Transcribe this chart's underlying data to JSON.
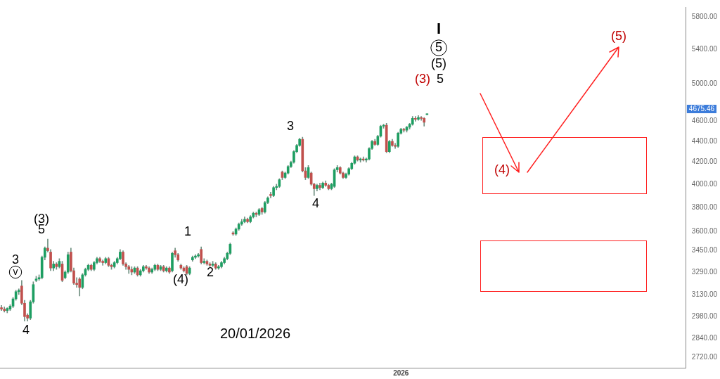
{
  "chart_data": {
    "type": "candlestick",
    "categories": [
      null,
      null,
      null,
      null,
      null,
      null,
      null,
      null,
      null,
      null,
      null,
      null,
      null,
      null,
      null,
      null,
      null,
      null,
      null,
      null,
      null,
      null,
      null,
      null,
      null,
      null,
      null,
      null,
      null,
      null,
      null,
      null,
      null,
      null,
      null,
      null,
      null,
      null,
      null,
      null,
      null,
      null,
      null,
      null,
      null,
      null,
      null,
      null,
      null,
      null,
      null,
      null,
      null,
      null,
      null,
      null,
      null,
      null,
      null,
      null,
      null,
      null,
      null,
      null,
      null,
      null,
      null,
      null,
      null,
      null,
      null,
      null,
      null,
      null,
      null,
      null,
      null,
      null,
      null,
      null,
      null,
      null,
      null,
      null,
      null,
      null,
      null,
      null,
      null,
      null,
      null,
      null,
      null,
      null,
      null,
      null,
      null,
      null,
      null,
      null,
      null,
      null,
      null,
      null,
      null,
      null,
      null,
      null,
      null,
      null,
      null,
      null,
      null,
      null,
      null,
      null,
      null,
      null,
      null,
      null,
      null,
      null,
      null,
      null,
      null,
      null,
      null,
      null,
      null,
      null,
      null,
      null,
      null,
      null,
      null,
      null,
      null,
      null,
      "2026",
      null,
      null,
      null,
      null,
      null,
      null,
      null,
      null,
      null,
      null,
      null,
      null,
      null,
      null,
      null,
      null,
      null,
      null,
      null,
      null,
      null,
      null,
      null,
      null,
      null,
      null,
      null,
      null,
      null,
      null,
      null,
      null,
      null,
      null,
      null,
      null,
      null,
      null,
      null,
      null,
      null,
      null,
      null,
      null,
      null,
      null,
      null,
      null,
      null,
      null,
      null,
      null,
      null,
      null,
      null,
      null,
      null,
      null,
      null,
      null,
      null,
      null,
      null,
      null,
      null,
      null,
      null,
      null,
      null,
      null,
      null,
      null,
      null,
      null,
      null,
      null,
      null,
      null,
      null,
      null,
      null,
      null,
      null,
      null,
      null,
      null,
      null,
      null,
      null,
      null,
      null,
      null,
      null,
      null,
      null,
      null,
      null,
      null
    ],
    "ohlc": [
      [
        3040,
        3055,
        3020,
        3030
      ],
      [
        3030,
        3045,
        3010,
        3020
      ],
      [
        3020,
        3040,
        3005,
        3035
      ],
      [
        3030,
        3060,
        3020,
        3050
      ],
      [
        3050,
        3110,
        3040,
        3100
      ],
      [
        3100,
        3160,
        3090,
        3150
      ],
      [
        3150,
        3170,
        3130,
        3160
      ],
      [
        3190,
        3230,
        3060,
        3070
      ],
      [
        3070,
        3090,
        2950,
        2980
      ],
      [
        2990,
        3000,
        2950,
        2970
      ],
      [
        2970,
        3090,
        2960,
        3080
      ],
      [
        3080,
        3220,
        3070,
        3200
      ],
      [
        3230,
        3260,
        3220,
        3240
      ],
      [
        3240,
        3270,
        3230,
        3250
      ],
      [
        3250,
        3410,
        3240,
        3400
      ],
      [
        3400,
        3480,
        3380,
        3470
      ],
      [
        3470,
        3540,
        3440,
        3450
      ],
      [
        3440,
        3460,
        3300,
        3320
      ],
      [
        3320,
        3370,
        3300,
        3350
      ],
      [
        3350,
        3360,
        3310,
        3330
      ],
      [
        3330,
        3390,
        3320,
        3370
      ],
      [
        3350,
        3370,
        3220,
        3230
      ],
      [
        3250,
        3300,
        3240,
        3290
      ],
      [
        3290,
        3440,
        3280,
        3420
      ],
      [
        3440,
        3470,
        3290,
        3300
      ],
      [
        3300,
        3320,
        3200,
        3210
      ],
      [
        3210,
        3250,
        3180,
        3200
      ],
      [
        3240,
        3250,
        3120,
        3180
      ],
      [
        3180,
        3280,
        3170,
        3270
      ],
      [
        3270,
        3320,
        3260,
        3310
      ],
      [
        3310,
        3350,
        3300,
        3340
      ],
      [
        3340,
        3350,
        3300,
        3310
      ],
      [
        3310,
        3370,
        3300,
        3360
      ],
      [
        3360,
        3400,
        3350,
        3390
      ],
      [
        3390,
        3400,
        3360,
        3370
      ],
      [
        3370,
        3380,
        3340,
        3360
      ],
      [
        3360,
        3400,
        3350,
        3390
      ],
      [
        3390,
        3400,
        3330,
        3340
      ],
      [
        3340,
        3350,
        3310,
        3330
      ],
      [
        3330,
        3370,
        3320,
        3360
      ],
      [
        3360,
        3400,
        3350,
        3390
      ],
      [
        3390,
        3460,
        3380,
        3440
      ],
      [
        3440,
        3450,
        3340,
        3350
      ],
      [
        3350,
        3360,
        3310,
        3330
      ],
      [
        3330,
        3340,
        3280,
        3310
      ],
      [
        3310,
        3330,
        3270,
        3290
      ],
      [
        3290,
        3330,
        3280,
        3320
      ],
      [
        3320,
        3330,
        3260,
        3270
      ],
      [
        3270,
        3310,
        3260,
        3300
      ],
      [
        3300,
        3340,
        3290,
        3330
      ],
      [
        3330,
        3340,
        3310,
        3320
      ],
      [
        3320,
        3330,
        3280,
        3290
      ],
      [
        3290,
        3320,
        3280,
        3310
      ],
      [
        3310,
        3350,
        3300,
        3340
      ],
      [
        3340,
        3350,
        3300,
        3310
      ],
      [
        3310,
        3340,
        3300,
        3330
      ],
      [
        3330,
        3340,
        3290,
        3300
      ],
      [
        3300,
        3330,
        3290,
        3320
      ],
      [
        3320,
        3330,
        3280,
        3290
      ],
      [
        3300,
        3440,
        3290,
        3430
      ],
      [
        3450,
        3470,
        3400,
        3420
      ],
      [
        3420,
        3430,
        3370,
        3380
      ],
      [
        3340,
        3350,
        3310,
        3320
      ],
      [
        3320,
        3330,
        3290,
        3300
      ],
      [
        3330,
        3340,
        3270,
        3280
      ],
      [
        3280,
        3330,
        3270,
        3320
      ],
      [
        3380,
        3410,
        3370,
        3400
      ],
      [
        3400,
        3420,
        3390,
        3410
      ],
      [
        3410,
        3430,
        3400,
        3420
      ],
      [
        3460,
        3480,
        3350,
        3360
      ],
      [
        3360,
        3390,
        3350,
        3370
      ],
      [
        3370,
        3380,
        3340,
        3350
      ],
      [
        3350,
        3360,
        3330,
        3340
      ],
      [
        3340,
        3370,
        3330,
        3350
      ],
      [
        3350,
        3360,
        3310,
        3320
      ],
      [
        3320,
        3340,
        3310,
        3330
      ],
      [
        3330,
        3370,
        3320,
        3360
      ],
      [
        3360,
        3400,
        3350,
        3390
      ],
      [
        3390,
        3440,
        3380,
        3430
      ],
      [
        3430,
        3510,
        3420,
        3500
      ],
      [
        3590,
        3600,
        3570,
        3580
      ],
      [
        3580,
        3630,
        3570,
        3620
      ],
      [
        3620,
        3670,
        3610,
        3660
      ],
      [
        3660,
        3700,
        3650,
        3680
      ],
      [
        3680,
        3720,
        3670,
        3700
      ],
      [
        3700,
        3710,
        3670,
        3680
      ],
      [
        3680,
        3730,
        3670,
        3720
      ],
      [
        3720,
        3760,
        3710,
        3750
      ],
      [
        3750,
        3760,
        3720,
        3740
      ],
      [
        3740,
        3790,
        3730,
        3780
      ],
      [
        3790,
        3800,
        3740,
        3760
      ],
      [
        3760,
        3850,
        3750,
        3840
      ],
      [
        3840,
        3890,
        3830,
        3880
      ],
      [
        3910,
        3930,
        3880,
        3900
      ],
      [
        3900,
        3980,
        3890,
        3970
      ],
      [
        3970,
        4000,
        3950,
        3980
      ],
      [
        3980,
        4050,
        3970,
        4040
      ],
      [
        4110,
        4120,
        4040,
        4060
      ],
      [
        4060,
        4110,
        4050,
        4100
      ],
      [
        4100,
        4170,
        4090,
        4160
      ],
      [
        4160,
        4210,
        4150,
        4200
      ],
      [
        4200,
        4310,
        4190,
        4300
      ],
      [
        4300,
        4370,
        4290,
        4360
      ],
      [
        4360,
        4430,
        4350,
        4420
      ],
      [
        4420,
        4440,
        4110,
        4120
      ],
      [
        4120,
        4150,
        4040,
        4060
      ],
      [
        4060,
        4170,
        4050,
        4150
      ],
      [
        4100,
        4110,
        3990,
        4000
      ],
      [
        4000,
        4010,
        3900,
        3960
      ],
      [
        3960,
        4000,
        3940,
        3990
      ],
      [
        3990,
        4010,
        3950,
        3970
      ],
      [
        3970,
        4020,
        3960,
        4010
      ],
      [
        4010,
        4030,
        3980,
        3990
      ],
      [
        3990,
        4000,
        3950,
        3960
      ],
      [
        3960,
        4010,
        3950,
        4000
      ],
      [
        3980,
        4140,
        3970,
        4130
      ],
      [
        4130,
        4170,
        4110,
        4150
      ],
      [
        4150,
        4160,
        4090,
        4100
      ],
      [
        4100,
        4110,
        4050,
        4060
      ],
      [
        4060,
        4100,
        4050,
        4090
      ],
      [
        4090,
        4150,
        4080,
        4140
      ],
      [
        4140,
        4200,
        4130,
        4190
      ],
      [
        4190,
        4260,
        4180,
        4250
      ],
      [
        4250,
        4260,
        4210,
        4220
      ],
      [
        4220,
        4240,
        4200,
        4230
      ],
      [
        4230,
        4250,
        4210,
        4220
      ],
      [
        4220,
        4240,
        4200,
        4230
      ],
      [
        4230,
        4340,
        4220,
        4330
      ],
      [
        4330,
        4410,
        4320,
        4400
      ],
      [
        4400,
        4420,
        4360,
        4370
      ],
      [
        4370,
        4460,
        4360,
        4450
      ],
      [
        4450,
        4560,
        4440,
        4550
      ],
      [
        4550,
        4570,
        4530,
        4560
      ],
      [
        4560,
        4580,
        4290,
        4300
      ],
      [
        4300,
        4410,
        4290,
        4400
      ],
      [
        4400,
        4420,
        4350,
        4360
      ],
      [
        4360,
        4380,
        4330,
        4350
      ],
      [
        4350,
        4490,
        4340,
        4480
      ],
      [
        4480,
        4530,
        4470,
        4520
      ],
      [
        4520,
        4530,
        4490,
        4510
      ],
      [
        4510,
        4550,
        4490,
        4540
      ],
      [
        4540,
        4580,
        4520,
        4570
      ],
      [
        4570,
        4650,
        4560,
        4630
      ],
      [
        4630,
        4650,
        4600,
        4620
      ],
      [
        4620,
        4660,
        4610,
        4640
      ],
      [
        4640,
        4650,
        4610,
        4630
      ],
      [
        4630,
        4640,
        4550,
        4590
      ],
      [
        4670,
        4680,
        4665,
        4675.46
      ],
      null,
      null,
      null,
      null,
      null,
      null,
      null,
      null,
      null,
      null,
      null,
      null,
      null,
      null,
      null,
      null,
      null,
      null,
      null,
      null,
      null,
      null,
      null,
      null,
      null,
      null,
      null,
      null,
      null,
      null,
      null,
      null,
      null,
      null,
      null,
      null,
      null,
      null,
      null,
      null,
      null,
      null,
      null,
      null,
      null,
      null,
      null,
      null,
      null,
      null,
      null,
      null,
      null,
      null,
      null,
      null,
      null,
      null,
      null,
      null,
      null,
      null,
      null,
      null,
      null,
      null,
      null,
      null,
      null,
      null,
      null,
      null,
      null,
      null,
      null,
      null,
      null,
      null,
      null,
      null,
      null,
      null,
      null,
      null,
      null,
      null,
      null,
      null,
      null
    ],
    "log": true,
    "ylim": [
      2660,
      5930
    ],
    "yticks": [
      {
        "value": 2720,
        "label": "2720.00"
      },
      {
        "value": 2840,
        "label": "2840.00"
      },
      {
        "value": 2980,
        "label": "2980.00"
      },
      {
        "value": 3130,
        "label": "3130.00"
      },
      {
        "value": 3290,
        "label": "3290.00"
      },
      {
        "value": 3450,
        "label": "3450.00"
      },
      {
        "value": 3600,
        "label": "3600.00"
      },
      {
        "value": 3800,
        "label": "3800.00"
      },
      {
        "value": 4000,
        "label": "4000.00"
      },
      {
        "value": 4200,
        "label": "4200.00"
      },
      {
        "value": 4400,
        "label": "4400.00"
      },
      {
        "value": 4600,
        "label": "4600.00"
      },
      {
        "value": 5000,
        "label": "5000.00"
      },
      {
        "value": 5400,
        "label": "5400.00"
      },
      {
        "value": 5800,
        "label": "5800.00"
      }
    ],
    "annotations": [
      "3",
      "v",
      "4",
      "(3)",
      "5",
      "1",
      "(4)",
      "2",
      "3",
      "4",
      "I",
      "5",
      "(5)",
      "5",
      "(3)",
      "(4)",
      "(5)",
      "20/01/2026",
      "4675.46"
    ]
  }
}
